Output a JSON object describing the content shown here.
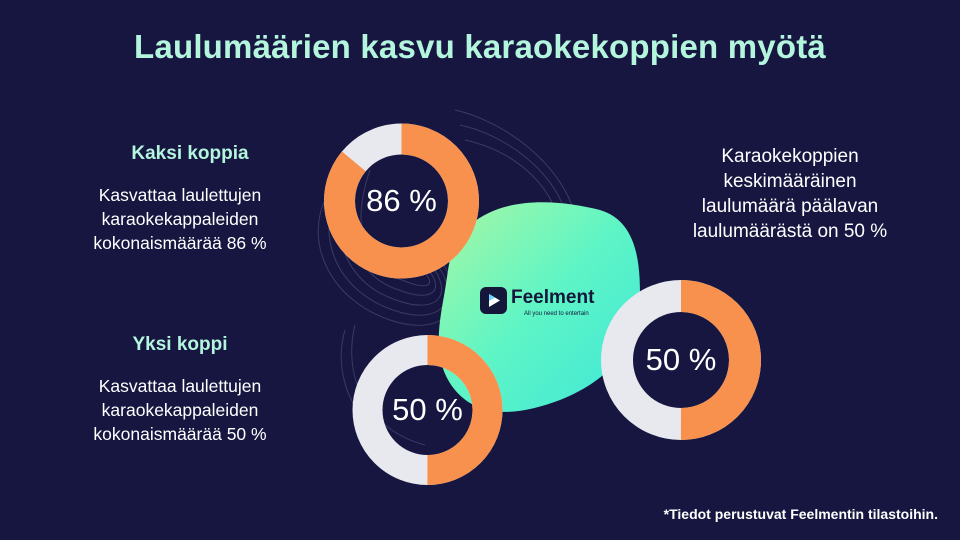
{
  "title": "Laulumäärien kasvu karaokekoppien myötä",
  "left_blocks": [
    {
      "heading": "Kaksi koppia",
      "lines": [
        "Kasvattaa laulettujen",
        "karaokekappaleiden",
        "kokonaismäärää 86 %"
      ]
    },
    {
      "heading": "Yksi koppi",
      "lines": [
        "Kasvattaa laulettujen",
        "karaokekappaleiden",
        "kokonaismäärää 50 %"
      ]
    }
  ],
  "right_text": [
    "Karaokekoppien",
    "keskimääräinen",
    "laulumäärä päälavan",
    "laulumäärästä on 50 %"
  ],
  "logo": {
    "name": "Feelment",
    "tagline": "All you need to entertain"
  },
  "footnote": "*Tiedot perustuvat Feelmentin tilastoihin.",
  "colors": {
    "background": "#161640",
    "accent": "#f7914d",
    "track": "#e8e8ef",
    "heading": "#b3f5dd",
    "blob_start": "#4ef2c8",
    "blob_end": "#a9f7a2"
  },
  "chart_data": [
    {
      "type": "pie",
      "name": "Kaksi koppia",
      "values": [
        86,
        14
      ],
      "label": "86 %"
    },
    {
      "type": "pie",
      "name": "Yksi koppi",
      "values": [
        50,
        50
      ],
      "label": "50 %"
    },
    {
      "type": "pie",
      "name": "Karaokekoppien keskimääräinen laulumäärä",
      "values": [
        50,
        50
      ],
      "label": "50 %"
    }
  ]
}
